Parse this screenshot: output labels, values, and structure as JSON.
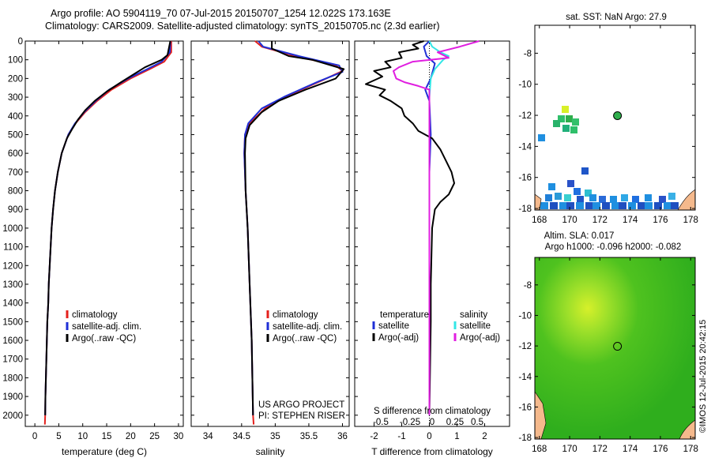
{
  "header": {
    "line1": "Argo profile: AO 5904119_70 07-Jul-2015 20150707_1254 12.022S 173.163E",
    "line2": "Climatology: CARS2009. Satellite-adjusted climatology: synTS_20150705.nc (2.3d earlier)"
  },
  "colors": {
    "climatology": "#e4201c",
    "satellite": "#1f2fd6",
    "argo": "#000000",
    "sal_satellite": "#33e6e6",
    "sal_argo": "#e01fe0",
    "land": "#f5b98c",
    "sla_field": "#3dbf1f"
  },
  "chart_data": [
    {
      "id": "temperature",
      "type": "line",
      "xlabel": "temperature (deg C)",
      "ylabel": "",
      "xlim": [
        -2,
        31
      ],
      "ylim": [
        2060,
        0
      ],
      "xticks": [
        "0",
        "5",
        "10",
        "15",
        "20",
        "25",
        "30"
      ],
      "xtick_values": [
        0,
        5,
        10,
        15,
        20,
        25,
        30
      ],
      "yticks": [
        0,
        100,
        200,
        300,
        400,
        500,
        600,
        700,
        800,
        900,
        1000,
        1100,
        1200,
        1300,
        1400,
        1500,
        1600,
        1700,
        1800,
        1900,
        2000
      ],
      "legend": [
        "climatology",
        "satellite-adj. clim.",
        "Argo(..raw -QC)"
      ],
      "series": [
        {
          "name": "climatology",
          "color": "#e4201c",
          "points": [
            [
              28.5,
              0
            ],
            [
              28.5,
              60
            ],
            [
              27,
              110
            ],
            [
              24,
              150
            ],
            [
              20,
              200
            ],
            [
              16,
              260
            ],
            [
              13,
              320
            ],
            [
              10.5,
              380
            ],
            [
              8.5,
              440
            ],
            [
              7,
              500
            ],
            [
              5.6,
              600
            ],
            [
              4.8,
              700
            ],
            [
              4.2,
              800
            ],
            [
              3.8,
              900
            ],
            [
              3.5,
              1000
            ],
            [
              3.3,
              1100
            ],
            [
              3.1,
              1200
            ],
            [
              2.9,
              1300
            ],
            [
              2.8,
              1400
            ],
            [
              2.6,
              1500
            ],
            [
              2.5,
              1600
            ],
            [
              2.4,
              1700
            ],
            [
              2.3,
              1800
            ],
            [
              2.2,
              1900
            ],
            [
              2.15,
              2000
            ],
            [
              2.1,
              2050
            ]
          ]
        },
        {
          "name": "satellite-adj. clim.",
          "color": "#1f2fd6",
          "points": [
            [
              28.3,
              0
            ],
            [
              28.2,
              60
            ],
            [
              26.5,
              110
            ],
            [
              23.5,
              150
            ],
            [
              19.5,
              200
            ],
            [
              15.5,
              260
            ],
            [
              12.7,
              320
            ],
            [
              10.3,
              380
            ],
            [
              8.4,
              440
            ],
            [
              7,
              500
            ],
            [
              5.6,
              600
            ],
            [
              4.8,
              700
            ],
            [
              4.2,
              800
            ],
            [
              3.8,
              900
            ],
            [
              3.5,
              1000
            ],
            [
              3.3,
              1100
            ],
            [
              3.1,
              1200
            ],
            [
              2.9,
              1300
            ],
            [
              2.8,
              1400
            ],
            [
              2.6,
              1500
            ],
            [
              2.5,
              1600
            ],
            [
              2.4,
              1700
            ],
            [
              2.3,
              1800
            ],
            [
              2.2,
              1900
            ],
            [
              2.15,
              2000
            ]
          ]
        },
        {
          "name": "Argo(..raw -QC)",
          "color": "#000000",
          "points": [
            [
              28.3,
              0
            ],
            [
              27.9,
              50
            ],
            [
              27.7,
              75
            ],
            [
              26.5,
              100
            ],
            [
              23,
              140
            ],
            [
              20.5,
              180
            ],
            [
              18,
              220
            ],
            [
              15,
              270
            ],
            [
              12.5,
              320
            ],
            [
              10.5,
              370
            ],
            [
              9,
              420
            ],
            [
              7.8,
              470
            ],
            [
              6.7,
              520
            ],
            [
              5.6,
              600
            ],
            [
              4.8,
              700
            ],
            [
              4.2,
              800
            ],
            [
              3.8,
              900
            ],
            [
              3.5,
              1000
            ],
            [
              3.3,
              1100
            ],
            [
              3.1,
              1200
            ],
            [
              2.9,
              1300
            ],
            [
              2.8,
              1400
            ],
            [
              2.6,
              1500
            ],
            [
              2.5,
              1600
            ],
            [
              2.4,
              1700
            ],
            [
              2.3,
              1800
            ],
            [
              2.2,
              1900
            ],
            [
              2.15,
              2000
            ]
          ]
        }
      ]
    },
    {
      "id": "salinity",
      "type": "line",
      "xlabel": "salinity",
      "ylabel": "",
      "xlim": [
        33.75,
        36.1
      ],
      "ylim": [
        2060,
        0
      ],
      "xticks": [
        "34",
        "34.5",
        "35",
        "35.5",
        "36"
      ],
      "xtick_values": [
        34,
        34.5,
        35,
        35.5,
        36
      ],
      "legend": [
        "climatology",
        "satellite-adj. clim.",
        "Argo(..raw -QC)"
      ],
      "annotations": [
        "US ARGO PROJECT",
        "PI: STEPHEN RISER"
      ],
      "series": [
        {
          "name": "climatology",
          "color": "#e4201c",
          "points": [
            [
              34.7,
              0
            ],
            [
              34.8,
              30
            ],
            [
              35.3,
              80
            ],
            [
              35.9,
              130
            ],
            [
              36.0,
              160
            ],
            [
              35.7,
              210
            ],
            [
              35.2,
              290
            ],
            [
              34.85,
              360
            ],
            [
              34.62,
              440
            ],
            [
              34.55,
              500
            ],
            [
              34.54,
              600
            ],
            [
              34.56,
              800
            ],
            [
              34.59,
              1000
            ],
            [
              34.62,
              1300
            ],
            [
              34.65,
              1600
            ],
            [
              34.67,
              2000
            ],
            [
              34.68,
              2050
            ]
          ]
        },
        {
          "name": "satellite-adj. clim.",
          "color": "#1f2fd6",
          "points": [
            [
              34.75,
              0
            ],
            [
              34.82,
              30
            ],
            [
              35.35,
              80
            ],
            [
              35.95,
              130
            ],
            [
              36.0,
              165
            ],
            [
              35.65,
              215
            ],
            [
              35.15,
              295
            ],
            [
              34.8,
              360
            ],
            [
              34.6,
              440
            ],
            [
              34.55,
              500
            ],
            [
              34.54,
              600
            ],
            [
              34.56,
              800
            ],
            [
              34.59,
              1000
            ],
            [
              34.62,
              1300
            ],
            [
              34.65,
              1600
            ],
            [
              34.67,
              2000
            ]
          ]
        },
        {
          "name": "Argo(..raw -QC)",
          "color": "#000000",
          "points": [
            [
              34.95,
              0
            ],
            [
              34.95,
              40
            ],
            [
              35.2,
              80
            ],
            [
              35.55,
              100
            ],
            [
              36.02,
              150
            ],
            [
              35.9,
              200
            ],
            [
              35.45,
              260
            ],
            [
              35.05,
              320
            ],
            [
              34.8,
              380
            ],
            [
              34.62,
              450
            ],
            [
              34.56,
              520
            ],
            [
              34.55,
              600
            ],
            [
              34.56,
              800
            ],
            [
              34.59,
              1000
            ],
            [
              34.62,
              1300
            ],
            [
              34.65,
              1600
            ],
            [
              34.67,
              2000
            ]
          ]
        }
      ]
    },
    {
      "id": "difference",
      "type": "line",
      "xlabel": "T difference from climatology",
      "title_bottom": "S difference from climatology",
      "xlim": [
        -2.7,
        2.9
      ],
      "ylim": [
        2060,
        0
      ],
      "xticks": [
        "-2",
        "-1",
        "0",
        "1",
        "2"
      ],
      "xtick_values": [
        -2,
        -1,
        0,
        1,
        2
      ],
      "s_ticks": [
        "-0.5",
        "-0.25",
        "0",
        "0.25",
        "0.5"
      ],
      "s_tick_values": [
        -0.5,
        -0.25,
        0,
        0.25,
        0.5
      ],
      "legend_titles": [
        "temperature",
        "salinity"
      ],
      "legend": [
        "satellite",
        "Argo(-adj)",
        "satellite",
        "Argo(-adj)"
      ],
      "series": [
        {
          "name": "temperature satellite",
          "color": "#1f2fd6",
          "points": [
            [
              0,
              0
            ],
            [
              -0.2,
              30
            ],
            [
              -0.1,
              80
            ],
            [
              0.2,
              120
            ],
            [
              0.05,
              200
            ],
            [
              -0.15,
              260
            ],
            [
              0,
              320
            ],
            [
              0.05,
              500
            ],
            [
              0,
              700
            ],
            [
              0,
              1000
            ],
            [
              0,
              1500
            ],
            [
              0,
              2000
            ]
          ]
        },
        {
          "name": "temperature Argo(-adj)",
          "color": "#000000",
          "points": [
            [
              -0.2,
              0
            ],
            [
              -0.6,
              20
            ],
            [
              -0.4,
              40
            ],
            [
              -1.1,
              60
            ],
            [
              -1.0,
              90
            ],
            [
              -1.6,
              110
            ],
            [
              -1.4,
              140
            ],
            [
              -2.0,
              160
            ],
            [
              -1.7,
              190
            ],
            [
              -2.3,
              230
            ],
            [
              -1.6,
              260
            ],
            [
              -1.8,
              290
            ],
            [
              -1.4,
              320
            ],
            [
              -1.0,
              360
            ],
            [
              -0.9,
              400
            ],
            [
              -0.6,
              440
            ],
            [
              -0.4,
              480
            ],
            [
              0.1,
              520
            ],
            [
              0.4,
              580
            ],
            [
              0.6,
              640
            ],
            [
              0.8,
              700
            ],
            [
              0.9,
              760
            ],
            [
              0.7,
              820
            ],
            [
              0.4,
              860
            ],
            [
              0.2,
              900
            ],
            [
              0.1,
              1000
            ],
            [
              0.05,
              1300
            ],
            [
              0.05,
              1500
            ],
            [
              0,
              2000
            ]
          ]
        },
        {
          "name": "salinity satellite",
          "color": "#33e6e6",
          "points": [
            [
              0,
              0
            ],
            [
              0.1,
              30
            ],
            [
              0.4,
              60
            ],
            [
              0.7,
              80
            ],
            [
              0.5,
              100
            ],
            [
              0.2,
              150
            ],
            [
              0.05,
              200
            ],
            [
              0,
              300
            ],
            [
              0,
              500
            ],
            [
              0,
              800
            ],
            [
              0,
              1100
            ],
            [
              0,
              1500
            ],
            [
              0,
              2000
            ]
          ]
        },
        {
          "name": "salinity Argo(-adj)",
          "color": "#e01fe0",
          "points": [
            [
              1.8,
              0
            ],
            [
              1.1,
              30
            ],
            [
              0.3,
              60
            ],
            [
              0.7,
              90
            ],
            [
              -0.6,
              110
            ],
            [
              -1.1,
              140
            ],
            [
              -1.3,
              160
            ],
            [
              -1.2,
              200
            ],
            [
              -0.9,
              220
            ],
            [
              -0.4,
              240
            ],
            [
              0,
              260
            ],
            [
              0,
              400
            ],
            [
              0,
              600
            ],
            [
              0,
              800
            ],
            [
              0,
              1000
            ],
            [
              0,
              2000
            ]
          ]
        }
      ]
    }
  ],
  "map_top": {
    "title": "sat. SST: NaN Argo: 27.9",
    "xticks": [
      "168",
      "170",
      "172",
      "174",
      "176",
      "178"
    ],
    "xtick_values": [
      168,
      170,
      172,
      174,
      176,
      178
    ],
    "yticks": [
      "-8",
      "-10",
      "-12",
      "-14",
      "-16",
      "-18"
    ],
    "ytick_values": [
      -8,
      -10,
      -12,
      -14,
      -16,
      -18
    ],
    "xlim": [
      167.7,
      178.3
    ],
    "ylim": [
      -6.2,
      -18.1
    ],
    "float_position": [
      173.163,
      -12.022
    ]
  },
  "map_bottom": {
    "title1": "Altim. SLA: 0.017",
    "title2": "Argo h1000: -0.096 h2000: -0.082",
    "xticks": [
      "168",
      "170",
      "172",
      "174",
      "176",
      "178"
    ],
    "xtick_values": [
      168,
      170,
      172,
      174,
      176,
      178
    ],
    "yticks": [
      "-8",
      "-10",
      "-12",
      "-14",
      "-16",
      "-18"
    ],
    "ytick_values": [
      -8,
      -10,
      -12,
      -14,
      -16,
      -18
    ],
    "xlim": [
      167.7,
      178.3
    ],
    "ylim": [
      -6.2,
      -18.1
    ],
    "float_position": [
      173.163,
      -12.022
    ]
  },
  "watermark": "©IMOS 12-Jul-2015 20:42:15"
}
